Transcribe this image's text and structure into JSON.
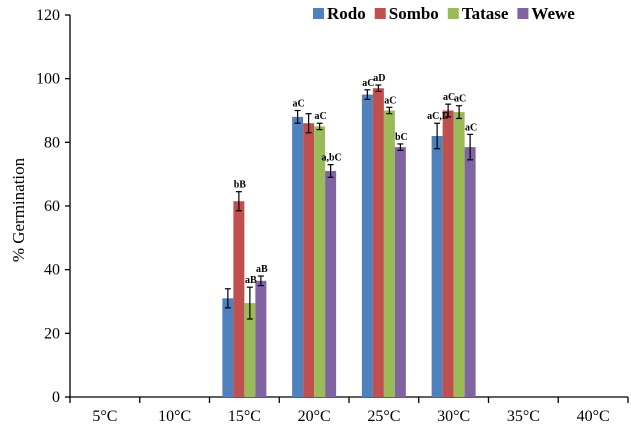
{
  "chart_data": {
    "type": "bar",
    "title": "",
    "xlabel": "",
    "ylabel": "% Germination",
    "ylim": [
      0,
      120
    ],
    "yticks": [
      0,
      20,
      40,
      60,
      80,
      100,
      120
    ],
    "grid": false,
    "legend_position": "top-right",
    "categories": [
      "5°C",
      "10°C",
      "15°C",
      "20°C",
      "25°C",
      "30°C",
      "35°C",
      "40°C"
    ],
    "series": [
      {
        "name": "Rodo",
        "color": "#4f81bd",
        "values": [
          0,
          0,
          31,
          88,
          95,
          82,
          0,
          0
        ],
        "errors": [
          0,
          0,
          3,
          2,
          1.5,
          4,
          0,
          0
        ],
        "labels": [
          "",
          "",
          "",
          "aC",
          "aC",
          "aC,D",
          "",
          ""
        ]
      },
      {
        "name": "Sombo",
        "color": "#c0504d",
        "values": [
          0,
          0,
          61.5,
          86,
          97,
          90,
          0,
          0
        ],
        "errors": [
          0,
          0,
          3,
          3,
          1,
          2,
          0,
          0
        ],
        "labels": [
          "",
          "",
          "bB",
          "",
          "aD",
          "aC",
          "",
          ""
        ]
      },
      {
        "name": "Tatase",
        "color": "#9bbb59",
        "values": [
          0,
          0,
          29.5,
          85,
          90,
          89.5,
          0,
          0
        ],
        "errors": [
          0,
          0,
          5,
          1,
          1,
          2,
          0,
          0
        ],
        "labels": [
          "",
          "",
          "aB",
          "aC",
          "aC",
          "aC",
          "",
          ""
        ]
      },
      {
        "name": "Wewe",
        "color": "#8064a2",
        "values": [
          0,
          0,
          36.5,
          71,
          78.5,
          78.5,
          0,
          0
        ],
        "errors": [
          0,
          0,
          1.5,
          2,
          1,
          4,
          0,
          0
        ],
        "labels": [
          "",
          "",
          "aB",
          "a,bC",
          "bC",
          "aC",
          "",
          ""
        ]
      }
    ]
  }
}
